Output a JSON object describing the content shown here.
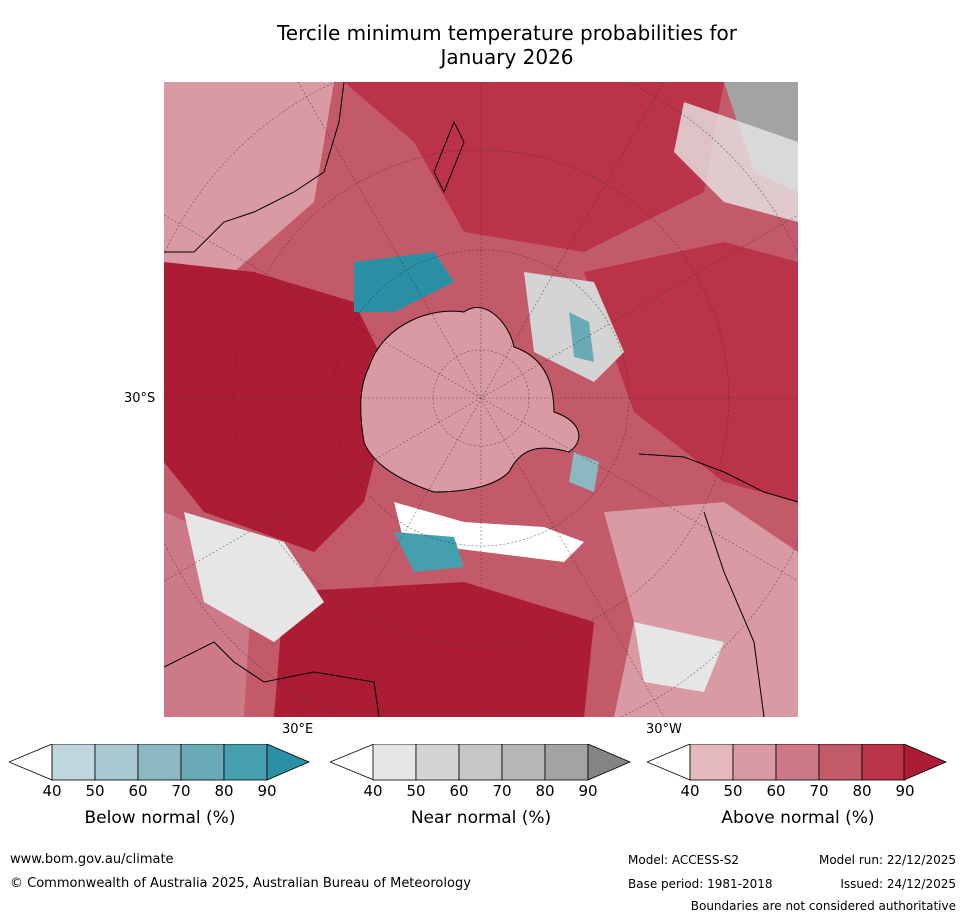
{
  "title": "Tercile minimum temperature probabilities for\nJanuary 2026",
  "map": {
    "projection": "south-polar-stereographic",
    "graticule_labels": {
      "lat": "30°S",
      "lon_east": "30°E",
      "lon_west": "30°W"
    },
    "colors": {
      "below": [
        "#ffffff",
        "#bfd6dc",
        "#a7c8cf",
        "#8cb8c2",
        "#6aaab6",
        "#469fae",
        "#2a90a4"
      ],
      "near": [
        "#ffffff",
        "#e6e6e6",
        "#d4d4d4",
        "#c6c6c6",
        "#b6b6b6",
        "#a3a3a3",
        "#848484"
      ],
      "above": [
        "#ffffff",
        "#e3b9be",
        "#d99aa3",
        "#cd7987",
        "#c35a6a",
        "#ba3349",
        "#ad1c35"
      ]
    }
  },
  "colorbars": [
    {
      "name": "below",
      "label": "Below normal (%)",
      "ticks": [
        "40",
        "50",
        "60",
        "70",
        "80",
        "90"
      ]
    },
    {
      "name": "near",
      "label": "Near normal (%)",
      "ticks": [
        "40",
        "50",
        "60",
        "70",
        "80",
        "90"
      ]
    },
    {
      "name": "above",
      "label": "Above normal (%)",
      "ticks": [
        "40",
        "50",
        "60",
        "70",
        "80",
        "90"
      ]
    }
  ],
  "footer": {
    "url": "www.bom.gov.au/climate",
    "copyright": "© Commonwealth of Australia 2025, Australian Bureau of Meteorology",
    "model": "Model: ACCESS-S2",
    "base_period": "Base period: 1981-2018",
    "model_run": "Model run: 22/12/2025",
    "issued": "Issued: 24/12/2025",
    "disclaimer": "Boundaries are not considered authoritative"
  }
}
